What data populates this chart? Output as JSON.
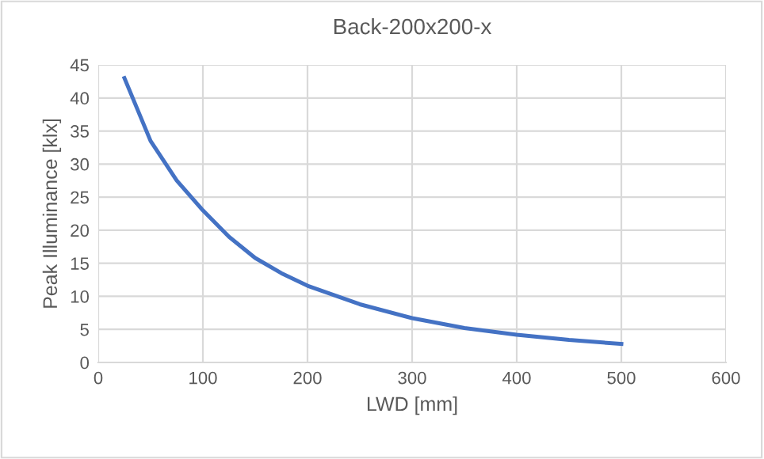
{
  "chart_data": {
    "type": "line",
    "title": "Back-200x200-x",
    "xlabel": "LWD [mm]",
    "ylabel": "Peak Illuminance [klx]",
    "x": [
      25,
      50,
      75,
      100,
      125,
      150,
      175,
      200,
      250,
      300,
      350,
      400,
      450,
      500
    ],
    "series": [
      {
        "color": "#4472c4",
        "values": [
          43,
          33.5,
          27.5,
          23,
          19,
          15.8,
          13.5,
          11.6,
          8.8,
          6.7,
          5.2,
          4.2,
          3.4,
          2.8
        ]
      }
    ],
    "xlim": [
      0,
      600
    ],
    "xticks": [
      0,
      100,
      200,
      300,
      400,
      500,
      600
    ],
    "ylim": [
      0,
      45
    ],
    "yticks": [
      0,
      5,
      10,
      15,
      20,
      25,
      30,
      35,
      40,
      45
    ],
    "grid": true,
    "marker": "none",
    "line_style": "solid"
  }
}
